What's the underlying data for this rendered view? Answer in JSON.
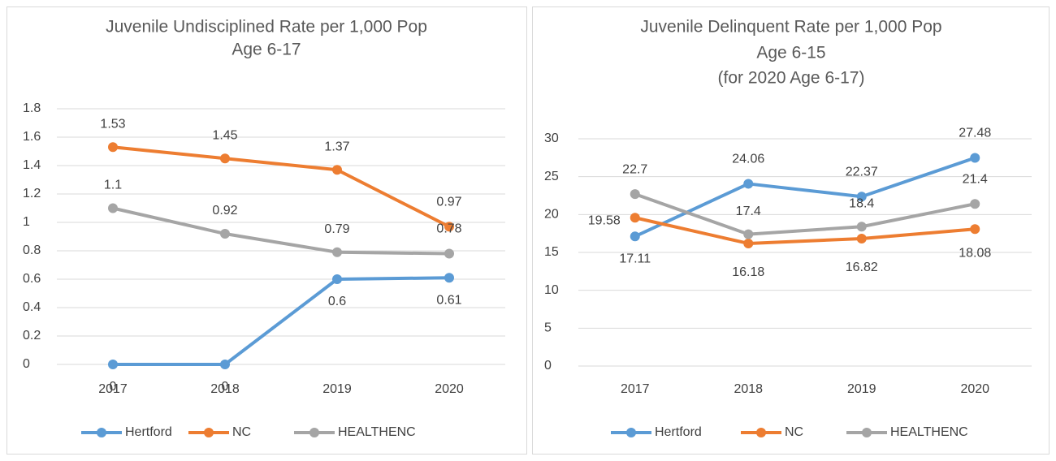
{
  "chart_data": [
    {
      "type": "line",
      "title": [
        "Juvenile Undisciplined Rate per 1,000 Pop",
        "Age 6-17"
      ],
      "categories": [
        "2017",
        "2018",
        "2019",
        "2020"
      ],
      "series": [
        {
          "name": "Hertford",
          "color": "#5b9bd5",
          "values": [
            0,
            0,
            0.6,
            0.61
          ]
        },
        {
          "name": "NC",
          "color": "#ed7d31",
          "values": [
            1.53,
            1.45,
            1.37,
            0.97
          ]
        },
        {
          "name": "HEALTHENC",
          "color": "#a5a5a5",
          "values": [
            1.1,
            0.92,
            0.79,
            0.78
          ]
        }
      ],
      "ylim": [
        0,
        1.8
      ],
      "yticks": [
        0,
        0.2,
        0.4,
        0.6,
        0.8,
        1,
        1.2,
        1.4,
        1.6,
        1.8
      ],
      "grid": true,
      "legend": "bottom"
    },
    {
      "type": "line",
      "title": [
        "Juvenile Delinquent Rate per 1,000 Pop",
        "Age 6-15",
        "(for 2020 Age 6-17)"
      ],
      "categories": [
        "2017",
        "2018",
        "2019",
        "2020"
      ],
      "series": [
        {
          "name": "Hertford",
          "color": "#5b9bd5",
          "values": [
            17.11,
            24.06,
            22.37,
            27.48
          ]
        },
        {
          "name": "NC",
          "color": "#ed7d31",
          "values": [
            19.58,
            16.18,
            16.82,
            18.08
          ]
        },
        {
          "name": "HEALTHENC",
          "color": "#a5a5a5",
          "values": [
            22.7,
            17.4,
            18.4,
            21.4
          ]
        }
      ],
      "ylim": [
        0,
        30
      ],
      "yticks": [
        0,
        5,
        10,
        15,
        20,
        25,
        30
      ],
      "grid": true,
      "legend": "bottom"
    }
  ]
}
